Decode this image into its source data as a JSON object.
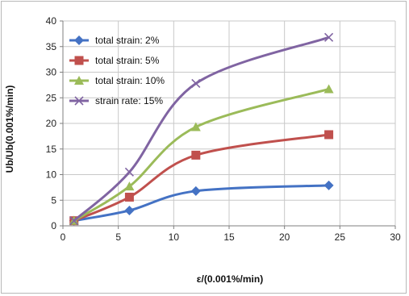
{
  "chart_data": {
    "type": "line",
    "title": "",
    "xlabel": "ε/(0.001%/min)",
    "ylabel": "Ub/Ub(0.001%/min)",
    "xlim": [
      0,
      30
    ],
    "ylim": [
      0,
      40
    ],
    "xticks": [
      0,
      5,
      10,
      15,
      20,
      25,
      30
    ],
    "yticks": [
      0,
      5,
      10,
      15,
      20,
      25,
      30,
      35,
      40
    ],
    "grid": true,
    "legend_position": "top-left",
    "x": [
      1,
      6,
      12,
      24
    ],
    "series": [
      {
        "name": "total strain: 2%",
        "values": [
          1,
          3,
          6.8,
          7.9
        ],
        "color": "#4472C4",
        "marker": "diamond"
      },
      {
        "name": "total strain: 5%",
        "values": [
          1,
          5.6,
          13.8,
          17.8
        ],
        "color": "#C0504D",
        "marker": "square"
      },
      {
        "name": "total strain: 10%",
        "values": [
          1,
          7.7,
          19.3,
          26.7
        ],
        "color": "#9BBB59",
        "marker": "triangle"
      },
      {
        "name": "strain rate: 15%",
        "values": [
          1,
          10.5,
          27.8,
          36.8
        ],
        "color": "#8064A2",
        "marker": "x"
      }
    ]
  }
}
